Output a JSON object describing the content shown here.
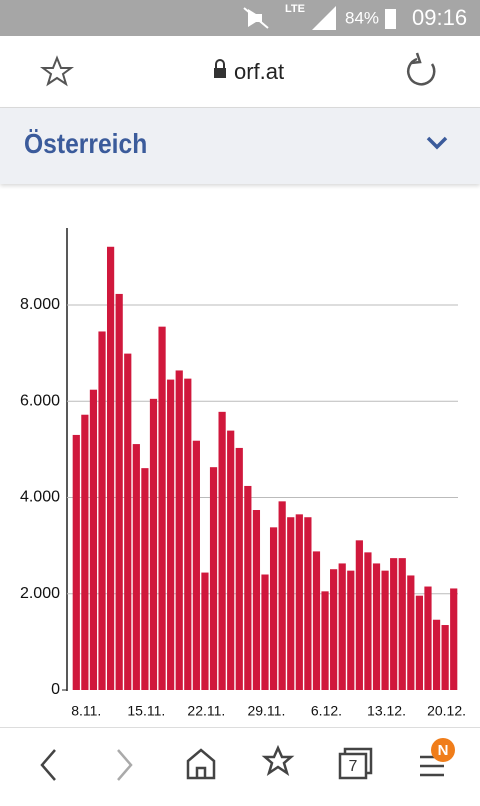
{
  "status_bar": {
    "network": "LTE",
    "battery": "84%",
    "time": "09:16"
  },
  "browser": {
    "url": "orf.at",
    "tab_count": "7",
    "badge": "N"
  },
  "header": {
    "title": "Österreich"
  },
  "chart_data": {
    "type": "bar",
    "categories": [
      "8.11.",
      null,
      null,
      null,
      null,
      null,
      null,
      "15.11.",
      null,
      null,
      null,
      null,
      null,
      null,
      "22.11.",
      null,
      null,
      null,
      null,
      null,
      null,
      "29.11.",
      null,
      null,
      null,
      null,
      null,
      null,
      "6.12.",
      null,
      null,
      null,
      null,
      null,
      null,
      "13.12.",
      null,
      null,
      null,
      null,
      null,
      null,
      "20.12.",
      null,
      null
    ],
    "values": [
      5300,
      5720,
      6240,
      7450,
      9210,
      8230,
      6990,
      5110,
      4610,
      6050,
      7550,
      6450,
      6640,
      6470,
      5180,
      2440,
      4630,
      5780,
      5390,
      5030,
      4240,
      3740,
      2400,
      3380,
      3920,
      3590,
      3650,
      3590,
      2880,
      2050,
      2510,
      2630,
      2480,
      3110,
      2860,
      2630,
      2480,
      2740,
      2740,
      2380,
      1960,
      2150,
      1460,
      1350,
      2110
    ],
    "color": "#d0183c",
    "ylim": [
      0,
      9600
    ],
    "yticks": [
      0,
      {
        "value": 2000,
        "label": "2.000"
      },
      {
        "value": 4000,
        "label": "4.000"
      },
      {
        "value": 6000,
        "label": "6.000"
      },
      {
        "value": 8000,
        "label": "8.000"
      }
    ],
    "grid": true
  }
}
